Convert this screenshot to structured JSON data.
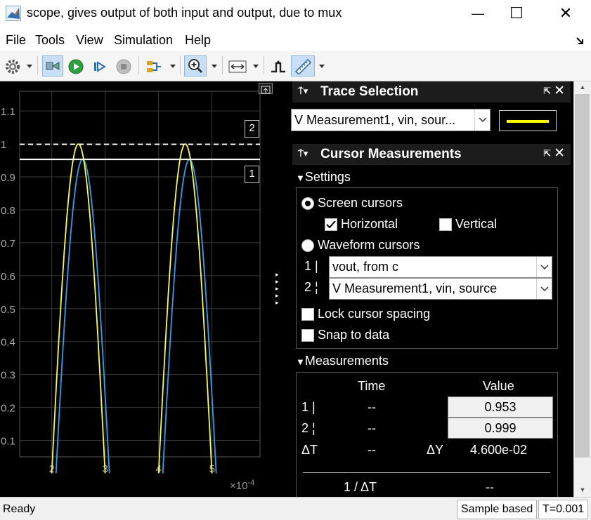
{
  "window": {
    "title": "scope, gives output of both input and output, due to mux",
    "controls": {
      "minimize": "—",
      "maximize": "☐",
      "close": "✕"
    }
  },
  "menu": [
    "File",
    "Tools",
    "View",
    "Simulation",
    "Help"
  ],
  "toolbar_icons": [
    "gear-icon",
    "highlight-block-icon",
    "run-icon",
    "step-forward-icon",
    "stop-icon",
    "signal-select-icon",
    "zoom-in-icon",
    "scale-axes-icon",
    "triggers-icon",
    "cursor-measurements-icon"
  ],
  "plot": {
    "cursor_labels": [
      "2",
      "1"
    ],
    "y_ticks": [
      "1.1",
      "1",
      "0.9",
      "0.8",
      "0.7",
      "0.6",
      "0.5",
      "0.4",
      "0.3",
      "0.2",
      "0.1"
    ],
    "x_ticks": [
      "2",
      "3",
      "4",
      "5"
    ],
    "x_exponent_base": "×10",
    "x_exponent_power": "-4",
    "colors": {
      "input": "#ffff33",
      "output": "#2aa0f0",
      "cursor": "#ffffff",
      "grid": "#3a3a3a"
    }
  },
  "chart_data": {
    "type": "line",
    "xlim": [
      0.00014,
      0.00059
    ],
    "ylim": [
      0.05,
      1.16
    ],
    "x_ticks": [
      0.0002,
      0.0003,
      0.0004,
      0.0005
    ],
    "y_ticks": [
      0.1,
      0.2,
      0.3,
      0.4,
      0.5,
      0.6,
      0.7,
      0.8,
      0.9,
      1.0,
      1.1
    ],
    "grid": true,
    "series": [
      {
        "label": "V Measurement1, vin, source",
        "color": "#ffff33",
        "peaks_at": [
          0.00025,
          0.00045
        ],
        "peak": 1.0
      },
      {
        "label": "vout, from c",
        "color": "#2aa0f0",
        "peaks_at": [
          0.000258,
          0.000458
        ],
        "peak": 0.953
      }
    ],
    "cursors": [
      {
        "id": "1",
        "y": 0.953,
        "style": "solid"
      },
      {
        "id": "2",
        "y": 0.999,
        "style": "dashed"
      }
    ]
  },
  "trace_selection": {
    "title": "Trace Selection",
    "selected": "V Measurement1, vin, sour...",
    "line_color": "#ffff00"
  },
  "cursor_measurements": {
    "title": "Cursor Measurements",
    "settings_label": "Settings",
    "screen_cursors": "Screen cursors",
    "horizontal": "Horizontal",
    "vertical": "Vertical",
    "waveform_cursors": "Waveform cursors",
    "cursor1_id": "1 |",
    "cursor2_id": "2 ¦",
    "cursor1_signal": "vout, from c",
    "cursor2_signal": "V Measurement1, vin, source",
    "lock_spacing": "Lock cursor spacing",
    "snap_to_data": "Snap to data",
    "measurements_label": "Measurements",
    "col_time": "Time",
    "col_value": "Value",
    "row1_label": "1 |",
    "row1_time": "--",
    "row1_value": "0.953",
    "row2_label": "2 ¦",
    "row2_time": "--",
    "row2_value": "0.999",
    "dt_label": "ΔT",
    "dt_value": "--",
    "dy_label": "ΔY",
    "dy_value": "4.600e-02",
    "inv_dt_label": "1 / ΔT",
    "inv_dt_value": "--"
  },
  "status": {
    "left": "Ready",
    "mode": "Sample based",
    "time": "T=0.001"
  }
}
